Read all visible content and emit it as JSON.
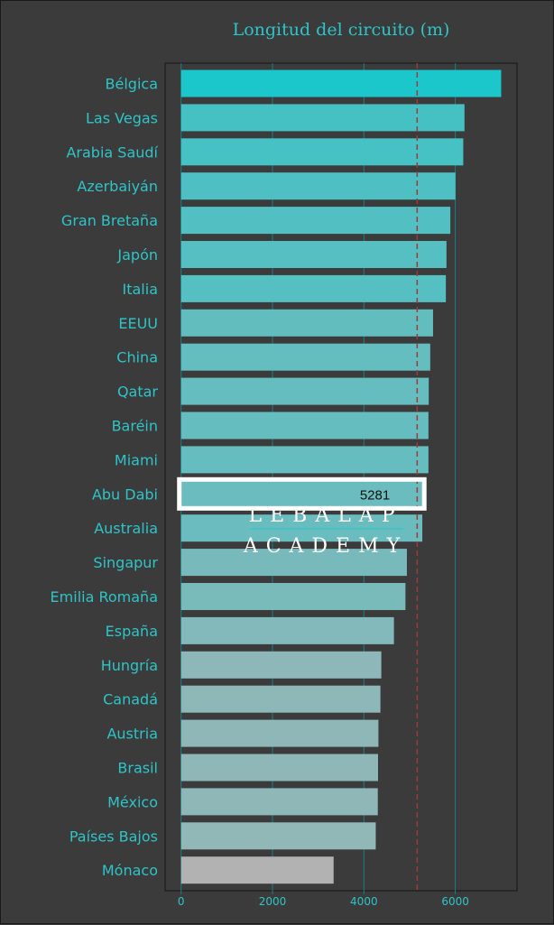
{
  "chart_data": {
    "type": "bar",
    "orientation": "horizontal",
    "title": "Longitud del circuito (m)",
    "xlabel": "",
    "ylabel": "",
    "categories": [
      "Bélgica",
      "Las Vegas",
      "Arabia Saudí",
      "Azerbaiyán",
      "Gran Bretaña",
      "Japón",
      "Italia",
      "EEUU",
      "China",
      "Qatar",
      "Baréin",
      "Miami",
      "Abu Dabi",
      "Australia",
      "Singapur",
      "Emilia Romaña",
      "España",
      "Hungría",
      "Canadá",
      "Austria",
      "Brasil",
      "México",
      "Países Bajos",
      "Mónaco"
    ],
    "values": [
      7004,
      6201,
      6174,
      6003,
      5891,
      5807,
      5793,
      5513,
      5451,
      5419,
      5412,
      5412,
      5281,
      5278,
      4940,
      4909,
      4657,
      4381,
      4361,
      4318,
      4309,
      4304,
      4259,
      3337
    ],
    "xlim": [
      -350,
      7350
    ],
    "xticks": [
      0,
      2000,
      4000,
      6000
    ],
    "reference_line": 5165,
    "highlighted_category": "Abu Dabi",
    "highlight_label": "5281",
    "grid": "vertical",
    "colors": {
      "top": "#1cc7cb",
      "bottom": "#b2b2b2",
      "text": "#2ec4c8",
      "background": "#3b3b3b",
      "reference_line": "#a03a3a",
      "highlight_border": "#ffffff"
    }
  },
  "watermark": {
    "line1": "LEBALAP",
    "line2": "ACADEMY"
  }
}
